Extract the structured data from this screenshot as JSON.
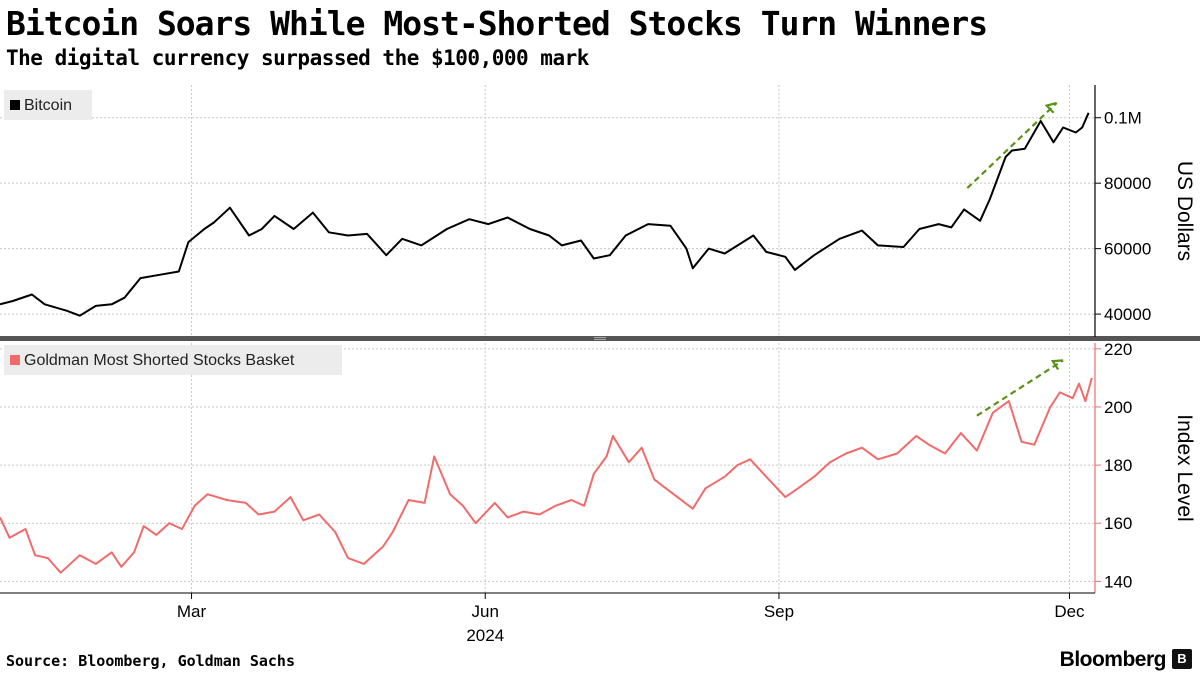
{
  "title": "Bitcoin Soars While Most-Shorted Stocks Turn Winners",
  "subtitle": "The digital currency surpassed the $100,000 mark",
  "source": "Source: Bloomberg, Goldman Sachs",
  "brand": "Bloomberg",
  "colors": {
    "bitcoin": "#000000",
    "goldman": "#f26b6b",
    "arrow": "#5a9216",
    "grid": "#c8c8c8",
    "divider": "#555555"
  },
  "chart_data": [
    {
      "type": "line",
      "legend": [
        "Bitcoin"
      ],
      "ylabel": "US Dollars",
      "y_ticks": [
        {
          "value": 40000,
          "label": "40000"
        },
        {
          "value": 60000,
          "label": "60000"
        },
        {
          "value": 80000,
          "label": "80000"
        },
        {
          "value": 100000,
          "label": "0.1M"
        }
      ],
      "ylim": [
        33000,
        110000
      ],
      "xlim": [
        "2024-01-01",
        "2024-12-09"
      ],
      "series": [
        {
          "name": "Bitcoin",
          "color": "#000000",
          "points": [
            [
              "2024-01-01",
              43000
            ],
            [
              "2024-01-05",
              44000
            ],
            [
              "2024-01-11",
              46000
            ],
            [
              "2024-01-15",
              43000
            ],
            [
              "2024-01-22",
              41000
            ],
            [
              "2024-01-26",
              39500
            ],
            [
              "2024-01-31",
              42500
            ],
            [
              "2024-02-05",
              43000
            ],
            [
              "2024-02-09",
              45000
            ],
            [
              "2024-02-14",
              51000
            ],
            [
              "2024-02-20",
              52000
            ],
            [
              "2024-02-26",
              53000
            ],
            [
              "2024-02-29",
              62000
            ],
            [
              "2024-03-05",
              66000
            ],
            [
              "2024-03-08",
              68000
            ],
            [
              "2024-03-13",
              72500
            ],
            [
              "2024-03-19",
              64000
            ],
            [
              "2024-03-23",
              66000
            ],
            [
              "2024-03-27",
              70000
            ],
            [
              "2024-04-02",
              66000
            ],
            [
              "2024-04-08",
              71000
            ],
            [
              "2024-04-13",
              65000
            ],
            [
              "2024-04-19",
              64000
            ],
            [
              "2024-04-25",
              64500
            ],
            [
              "2024-05-01",
              58000
            ],
            [
              "2024-05-06",
              63000
            ],
            [
              "2024-05-12",
              61000
            ],
            [
              "2024-05-20",
              66000
            ],
            [
              "2024-05-27",
              69000
            ],
            [
              "2024-06-02",
              67500
            ],
            [
              "2024-06-08",
              69500
            ],
            [
              "2024-06-15",
              66000
            ],
            [
              "2024-06-21",
              64000
            ],
            [
              "2024-06-25",
              61000
            ],
            [
              "2024-07-01",
              62500
            ],
            [
              "2024-07-05",
              57000
            ],
            [
              "2024-07-10",
              58000
            ],
            [
              "2024-07-15",
              64000
            ],
            [
              "2024-07-22",
              67500
            ],
            [
              "2024-07-29",
              67000
            ],
            [
              "2024-08-03",
              60000
            ],
            [
              "2024-08-05",
              54000
            ],
            [
              "2024-08-10",
              60000
            ],
            [
              "2024-08-15",
              58500
            ],
            [
              "2024-08-24",
              64000
            ],
            [
              "2024-08-28",
              59000
            ],
            [
              "2024-09-03",
              57500
            ],
            [
              "2024-09-06",
              53500
            ],
            [
              "2024-09-12",
              58000
            ],
            [
              "2024-09-20",
              63000
            ],
            [
              "2024-09-27",
              65500
            ],
            [
              "2024-10-02",
              61000
            ],
            [
              "2024-10-10",
              60500
            ],
            [
              "2024-10-15",
              66000
            ],
            [
              "2024-10-21",
              67500
            ],
            [
              "2024-10-25",
              66500
            ],
            [
              "2024-10-29",
              72000
            ],
            [
              "2024-11-03",
              68500
            ],
            [
              "2024-11-06",
              75000
            ],
            [
              "2024-11-11",
              88000
            ],
            [
              "2024-11-13",
              90000
            ],
            [
              "2024-11-17",
              90500
            ],
            [
              "2024-11-22",
              99000
            ],
            [
              "2024-11-26",
              92500
            ],
            [
              "2024-11-29",
              97000
            ],
            [
              "2024-12-03",
              95500
            ],
            [
              "2024-12-05",
              97000
            ],
            [
              "2024-12-07",
              101500
            ]
          ]
        }
      ],
      "annotations": [
        {
          "type": "dashed-arrow",
          "from": [
            "2024-10-30",
            78500
          ],
          "to": [
            "2024-11-27",
            104500
          ]
        }
      ]
    },
    {
      "type": "line",
      "legend": [
        "Goldman Most Shorted Stocks Basket"
      ],
      "ylabel": "Index Level",
      "y_ticks": [
        {
          "value": 140,
          "label": "140"
        },
        {
          "value": 160,
          "label": "160"
        },
        {
          "value": 180,
          "label": "180"
        },
        {
          "value": 200,
          "label": "200"
        },
        {
          "value": 220,
          "label": "220"
        }
      ],
      "ylim": [
        136,
        222
      ],
      "xlim": [
        "2024-01-01",
        "2024-12-09"
      ],
      "x_ticks": [
        {
          "value": "2024-03-01",
          "label": "Mar"
        },
        {
          "value": "2024-06-01",
          "label": "Jun"
        },
        {
          "value": "2024-09-01",
          "label": "Sep"
        },
        {
          "value": "2024-12-01",
          "label": "Dec"
        }
      ],
      "x_year_label": "2024",
      "series": [
        {
          "name": "Goldman Most Shorted Stocks Basket",
          "color": "#f26b6b",
          "points": [
            [
              "2024-01-01",
              162
            ],
            [
              "2024-01-04",
              155
            ],
            [
              "2024-01-09",
              158
            ],
            [
              "2024-01-12",
              149
            ],
            [
              "2024-01-16",
              148
            ],
            [
              "2024-01-20",
              143
            ],
            [
              "2024-01-26",
              149
            ],
            [
              "2024-01-31",
              146
            ],
            [
              "2024-02-05",
              150
            ],
            [
              "2024-02-08",
              145
            ],
            [
              "2024-02-12",
              150
            ],
            [
              "2024-02-15",
              159
            ],
            [
              "2024-02-19",
              156
            ],
            [
              "2024-02-23",
              160
            ],
            [
              "2024-02-27",
              158
            ],
            [
              "2024-03-02",
              166
            ],
            [
              "2024-03-06",
              170
            ],
            [
              "2024-03-12",
              168
            ],
            [
              "2024-03-18",
              167
            ],
            [
              "2024-03-22",
              163
            ],
            [
              "2024-03-27",
              164
            ],
            [
              "2024-04-01",
              169
            ],
            [
              "2024-04-05",
              161
            ],
            [
              "2024-04-10",
              163
            ],
            [
              "2024-04-15",
              157
            ],
            [
              "2024-04-19",
              148
            ],
            [
              "2024-04-24",
              146
            ],
            [
              "2024-04-30",
              152
            ],
            [
              "2024-05-03",
              157
            ],
            [
              "2024-05-08",
              168
            ],
            [
              "2024-05-13",
              167
            ],
            [
              "2024-05-16",
              183
            ],
            [
              "2024-05-21",
              170
            ],
            [
              "2024-05-25",
              166
            ],
            [
              "2024-05-29",
              160
            ],
            [
              "2024-06-04",
              167
            ],
            [
              "2024-06-08",
              162
            ],
            [
              "2024-06-13",
              164
            ],
            [
              "2024-06-18",
              163
            ],
            [
              "2024-06-23",
              166
            ],
            [
              "2024-06-28",
              168
            ],
            [
              "2024-07-02",
              166
            ],
            [
              "2024-07-05",
              177
            ],
            [
              "2024-07-09",
              183
            ],
            [
              "2024-07-11",
              190
            ],
            [
              "2024-07-16",
              181
            ],
            [
              "2024-07-20",
              186
            ],
            [
              "2024-07-24",
              175
            ],
            [
              "2024-07-30",
              170
            ],
            [
              "2024-08-05",
              165
            ],
            [
              "2024-08-09",
              172
            ],
            [
              "2024-08-15",
              176
            ],
            [
              "2024-08-19",
              180
            ],
            [
              "2024-08-23",
              182
            ],
            [
              "2024-08-28",
              176
            ],
            [
              "2024-09-03",
              169
            ],
            [
              "2024-09-07",
              172
            ],
            [
              "2024-09-12",
              176
            ],
            [
              "2024-09-17",
              181
            ],
            [
              "2024-09-22",
              184
            ],
            [
              "2024-09-27",
              186
            ],
            [
              "2024-10-02",
              182
            ],
            [
              "2024-10-08",
              184
            ],
            [
              "2024-10-14",
              190
            ],
            [
              "2024-10-18",
              187
            ],
            [
              "2024-10-23",
              184
            ],
            [
              "2024-10-28",
              191
            ],
            [
              "2024-11-02",
              185
            ],
            [
              "2024-11-07",
              198
            ],
            [
              "2024-11-12",
              202
            ],
            [
              "2024-11-16",
              188
            ],
            [
              "2024-11-20",
              187
            ],
            [
              "2024-11-25",
              200
            ],
            [
              "2024-11-28",
              205
            ],
            [
              "2024-12-02",
              203
            ],
            [
              "2024-12-04",
              208
            ],
            [
              "2024-12-06",
              202
            ],
            [
              "2024-12-08",
              210
            ]
          ]
        }
      ],
      "annotations": [
        {
          "type": "dashed-arrow",
          "from": [
            "2024-11-02",
            197
          ],
          "to": [
            "2024-11-29",
            216
          ]
        }
      ]
    }
  ]
}
